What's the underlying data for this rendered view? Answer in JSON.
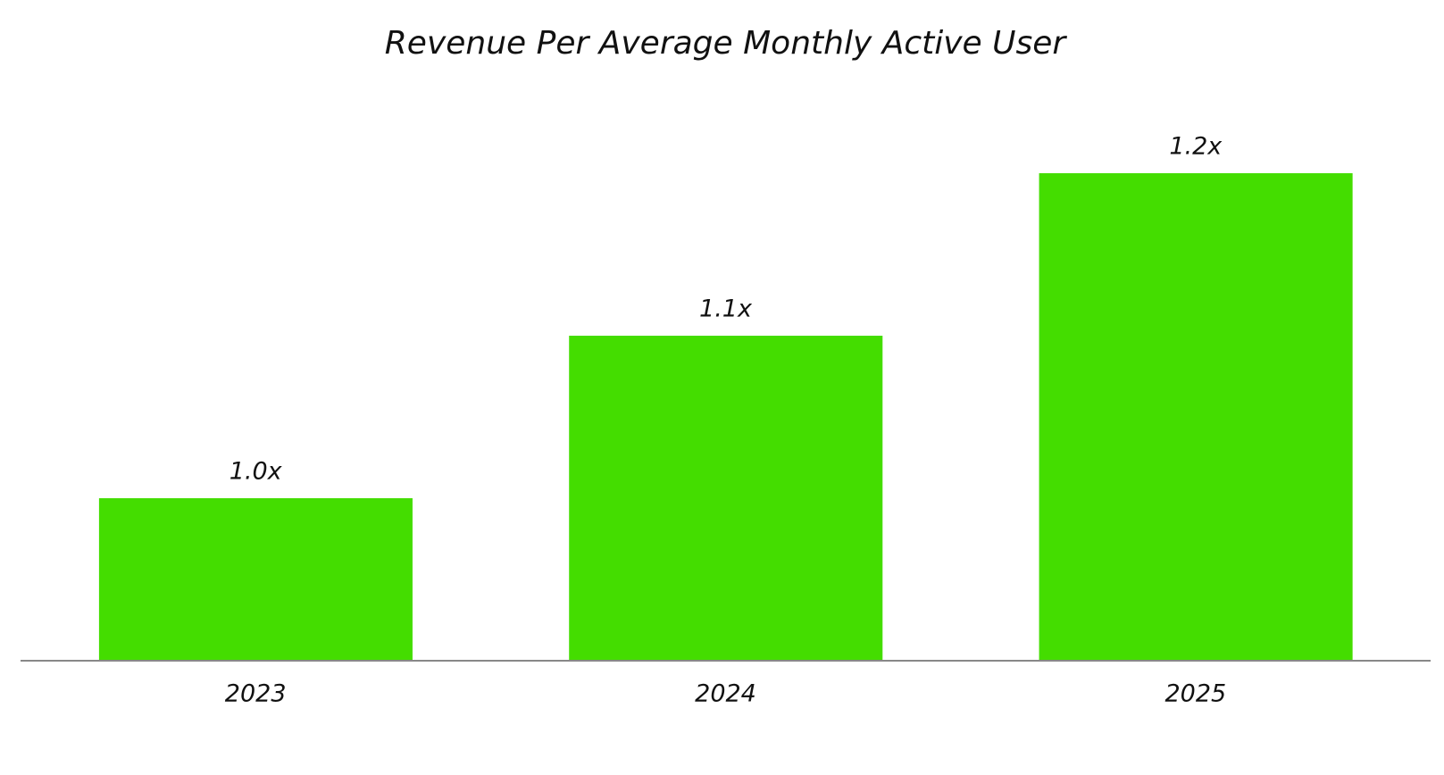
{
  "chart_data": {
    "type": "bar",
    "title": "Revenue Per Average Monthly Active User",
    "categories": [
      "2023",
      "2024",
      "2025"
    ],
    "values": [
      1.0,
      1.1,
      1.2
    ],
    "value_labels": [
      "1.0x",
      "1.1x",
      "1.2x"
    ],
    "color": "#44dd00",
    "ylim": [
      0.9,
      1.25
    ],
    "grid": false
  }
}
